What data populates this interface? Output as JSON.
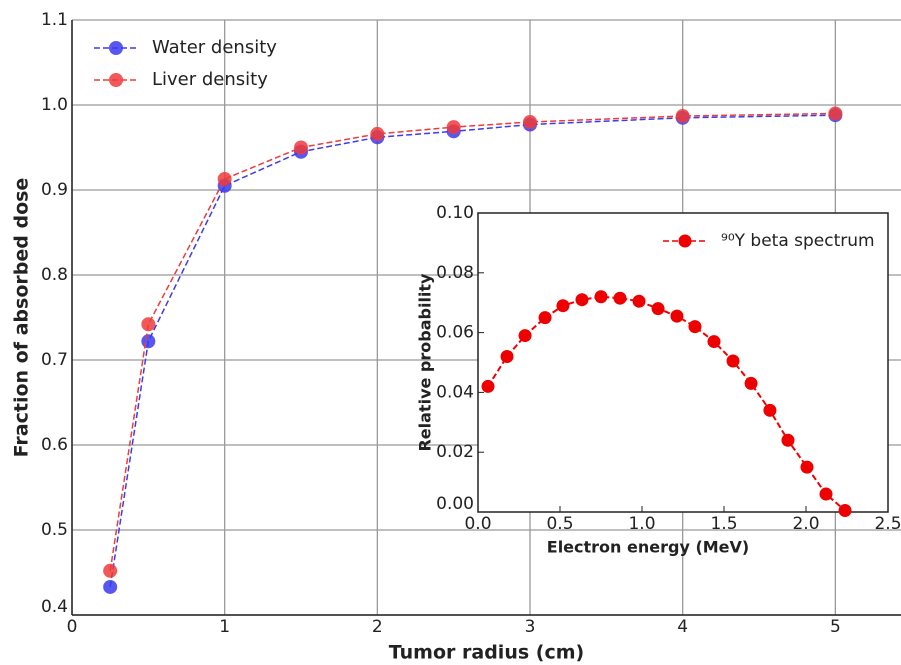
{
  "chart_data": [
    {
      "type": "line",
      "x_label": "Tumor radius (cm)",
      "y_label": "Fraction of absorbed dose",
      "xlim": [
        0,
        5.43
      ],
      "ylim": [
        0.4,
        1.1
      ],
      "xticks": [
        0,
        1,
        2,
        3,
        4,
        5
      ],
      "yticks": [
        0.4,
        0.5,
        0.6,
        0.7,
        0.8,
        0.9,
        {
          "value": 1,
          "label": "1.0"
        },
        1.1
      ],
      "grid": true,
      "legend": "upper left",
      "x": [
        0.25,
        0.5,
        1,
        1.5,
        2,
        2.5,
        3,
        4,
        5
      ],
      "series": [
        {
          "name": "Water density",
          "color": "#3b3bef",
          "values": [
            0.433,
            0.722,
            0.905,
            0.945,
            0.962,
            0.969,
            0.977,
            0.985,
            0.988
          ]
        },
        {
          "name": "Liver density",
          "color": "#ef3b3b",
          "values": [
            0.452,
            0.742,
            0.913,
            0.95,
            0.966,
            0.974,
            0.98,
            0.987,
            0.99
          ]
        }
      ]
    },
    {
      "type": "line",
      "x_label": "Electron energy (MeV)",
      "y_label": "Relative probability",
      "xlim": [
        0,
        2.5
      ],
      "ylim": [
        0,
        0.1
      ],
      "xticks": [
        {
          "value": 0,
          "label": "0.0"
        },
        0.5,
        {
          "value": 1,
          "label": "1.0"
        },
        1.5,
        {
          "value": 2,
          "label": "2.0"
        },
        2.5
      ],
      "yticks": [
        {
          "value": 0,
          "label": "0.00"
        },
        {
          "value": 0.02,
          "label": "0.02"
        },
        {
          "value": 0.04,
          "label": "0.04"
        },
        {
          "value": 0.06,
          "label": "0.06"
        },
        {
          "value": 0.08,
          "label": "0.08"
        },
        {
          "value": 0.1,
          "label": "0.10"
        }
      ],
      "grid": false,
      "legend": "upper right",
      "x": [
        0.061,
        0.177,
        0.287,
        0.409,
        0.518,
        0.634,
        0.75,
        0.866,
        0.982,
        1.098,
        1.213,
        1.323,
        1.439,
        1.555,
        1.665,
        1.78,
        1.89,
        2.006,
        2.122,
        2.238
      ],
      "series": [
        {
          "name": "⁹⁰Y beta spectrum",
          "color": "#ee0000",
          "values": [
            0.042,
            0.052,
            0.059,
            0.065,
            0.069,
            0.071,
            0.072,
            0.0715,
            0.0705,
            0.068,
            0.0655,
            0.062,
            0.057,
            0.0505,
            0.043,
            0.034,
            0.024,
            0.015,
            0.006,
            0.0005
          ]
        }
      ]
    }
  ]
}
